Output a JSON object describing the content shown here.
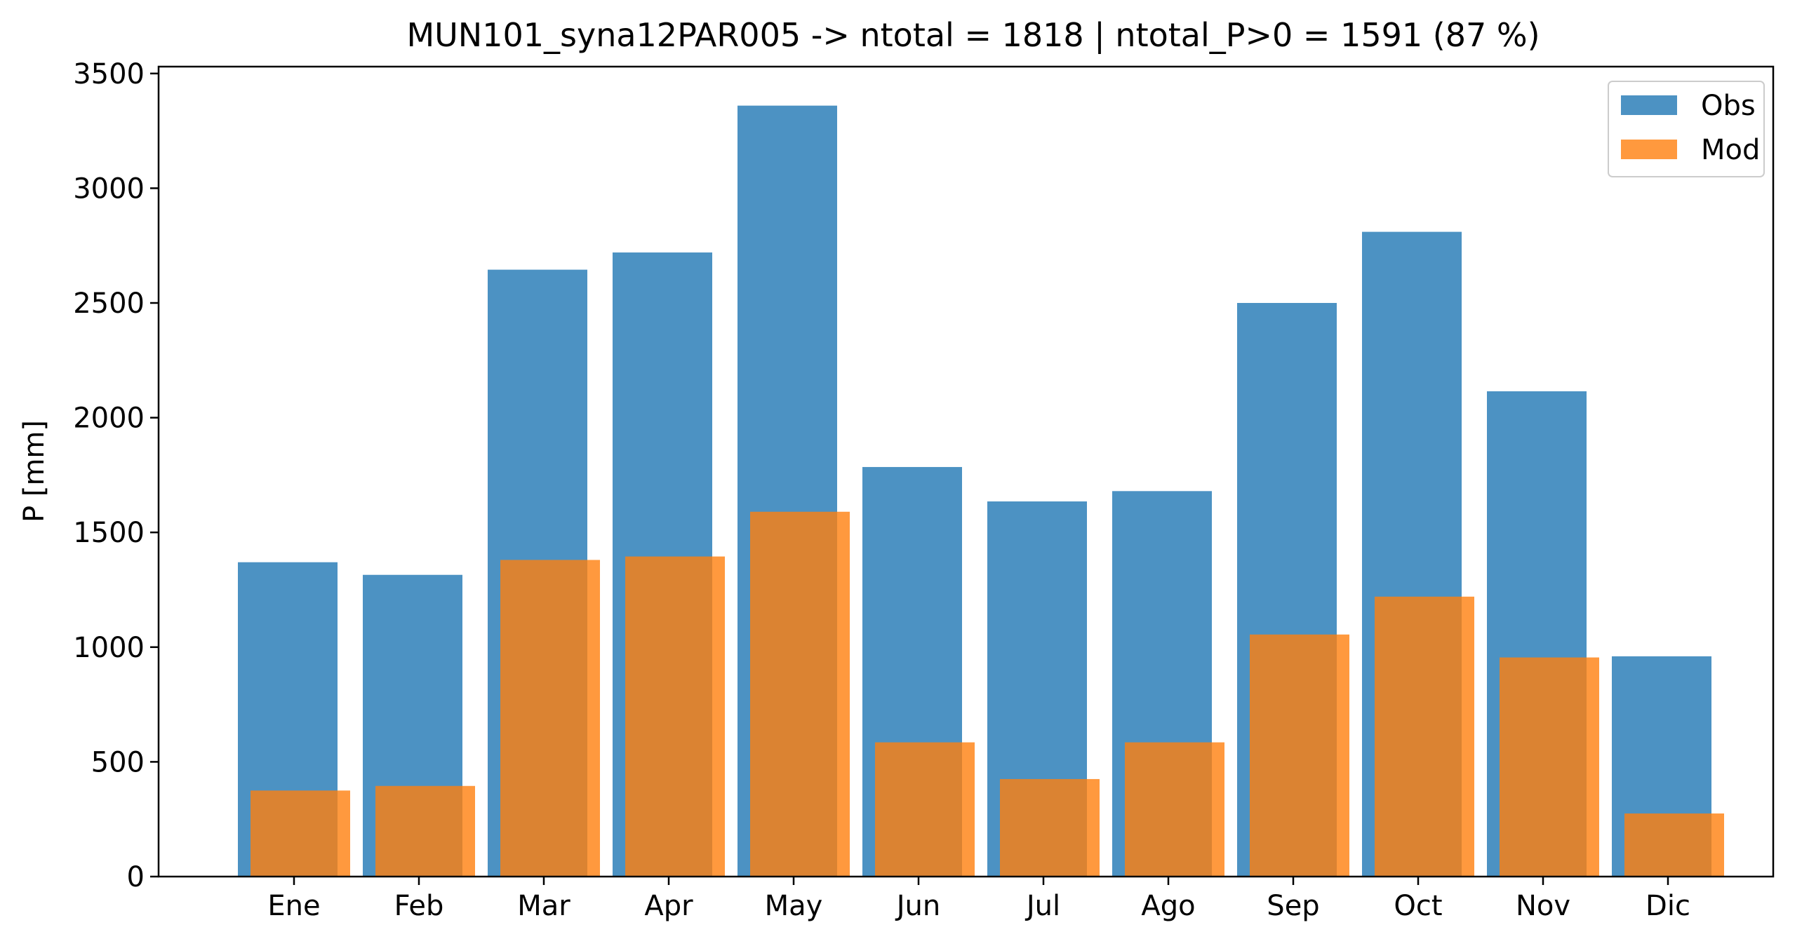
{
  "chart_data": {
    "type": "bar",
    "title": "MUN101_syna12PAR005 -> ntotal = 1818 | ntotal_P>0 = 1591 (87 %)",
    "xlabel": "",
    "ylabel": "P [mm]",
    "categories": [
      "Ene",
      "Feb",
      "Mar",
      "Apr",
      "May",
      "Jun",
      "Jul",
      "Ago",
      "Sep",
      "Oct",
      "Nov",
      "Dic"
    ],
    "series": [
      {
        "name": "Obs",
        "color": "#1f77b4",
        "values": [
          1370,
          1315,
          2645,
          2720,
          3360,
          1785,
          1635,
          1680,
          2500,
          2810,
          2115,
          960
        ]
      },
      {
        "name": "Mod",
        "color": "#ff7f0e",
        "values": [
          375,
          395,
          1380,
          1395,
          1590,
          585,
          425,
          585,
          1055,
          1220,
          955,
          275
        ]
      }
    ],
    "ylim": [
      0,
      3530
    ],
    "yticks": [
      0,
      500,
      1000,
      1500,
      2000,
      2500,
      3000,
      3500
    ],
    "legend": {
      "position": "top-right",
      "entries": [
        "Obs",
        "Mod"
      ]
    },
    "grid": false
  }
}
